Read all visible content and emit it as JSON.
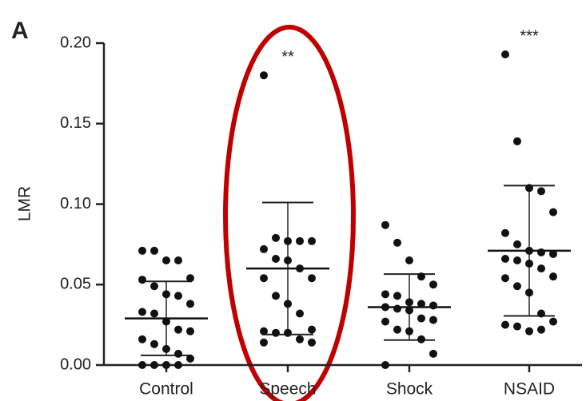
{
  "chart_data": {
    "type": "dot",
    "panel_label": "A",
    "ylabel": "LMR",
    "categories": [
      "Control",
      "Speech",
      "Shock",
      "NSAID"
    ],
    "values": [
      [
        0.071,
        0.071,
        0.065,
        0.065,
        0.054,
        0.053,
        0.049,
        0.044,
        0.043,
        0.038,
        0.033,
        0.032,
        0.027,
        0.022,
        0.021,
        0.016,
        0.013,
        0.01,
        0.007,
        0.004,
        0.0,
        0.0,
        0.0,
        0.0
      ],
      [
        0.18,
        0.079,
        0.077,
        0.077,
        0.077,
        0.072,
        0.066,
        0.065,
        0.06,
        0.054,
        0.054,
        0.043,
        0.038,
        0.032,
        0.022,
        0.021,
        0.02,
        0.02,
        0.016,
        0.014,
        0.014
      ],
      [
        0.087,
        0.076,
        0.065,
        0.055,
        0.05,
        0.044,
        0.043,
        0.039,
        0.038,
        0.037,
        0.036,
        0.035,
        0.034,
        0.029,
        0.028,
        0.027,
        0.022,
        0.021,
        0.016,
        0.007,
        0.0
      ],
      [
        0.193,
        0.139,
        0.11,
        0.108,
        0.095,
        0.082,
        0.075,
        0.071,
        0.07,
        0.069,
        0.066,
        0.065,
        0.063,
        0.06,
        0.055,
        0.054,
        0.049,
        0.045,
        0.032,
        0.027,
        0.025,
        0.024,
        0.021,
        0.022
      ]
    ],
    "means": [
      0.029,
      0.06,
      0.036,
      0.071
    ],
    "sd": [
      0.023,
      0.041,
      0.0205,
      0.0405
    ],
    "annotations": [
      null,
      "**",
      null,
      "***"
    ],
    "color": "#111111",
    "ylim": [
      0,
      0.2
    ],
    "yticks": [
      {
        "value": 0,
        "label": "0.00"
      },
      {
        "value": 0.05,
        "label": "0.05"
      },
      {
        "value": 0.1,
        "label": "0.10"
      },
      {
        "value": 0.15,
        "label": "0.15"
      },
      {
        "value": 0.2,
        "label": "0.20"
      }
    ]
  }
}
